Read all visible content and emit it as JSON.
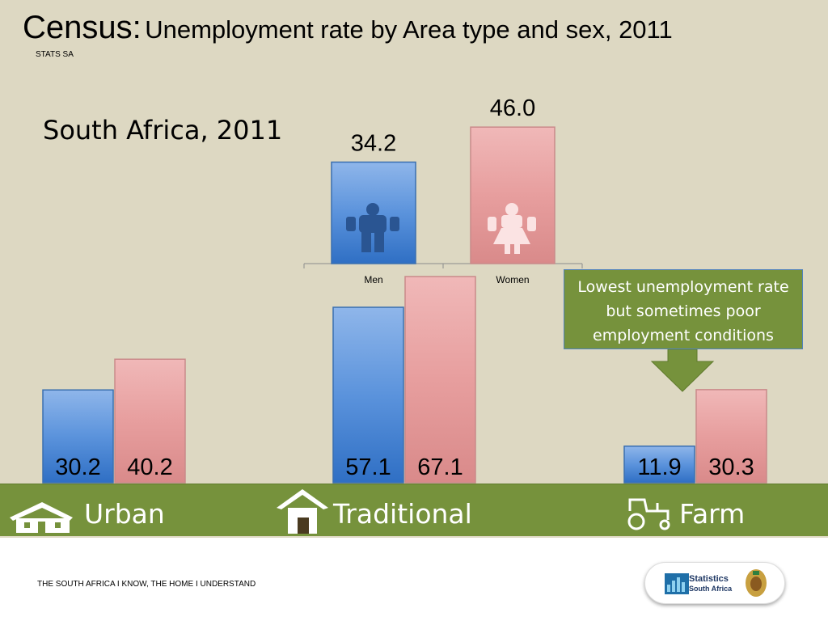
{
  "title": {
    "prefix": "Census:",
    "main": "Unemployment rate by Area type and sex, 2011"
  },
  "source_label": "STATS SA",
  "subtitle": "South Africa, 2011",
  "callout": "Lowest unemployment rate but sometimes poor employment conditions",
  "footer": "THE SOUTH AFRICA I KNOW, THE HOME I UNDERSTAND",
  "logo": {
    "line1": "Statistics",
    "line2": "South Africa"
  },
  "colors": {
    "men": "#558ed5",
    "women": "#e6a0a0",
    "band": "#76923c",
    "background": "#ddd8c2"
  },
  "icons": {
    "urban": "house-icon",
    "traditional": "hut-icon",
    "farm": "tractor-icon",
    "men": "man-icon",
    "women": "woman-icon"
  },
  "chart_data": [
    {
      "type": "bar",
      "categories": [
        "Men",
        "Women"
      ],
      "values": [
        34.2,
        46.0
      ],
      "data_labels": [
        "34.2",
        "46.0"
      ]
    },
    {
      "type": "bar",
      "categories": [
        "Urban",
        "Traditional",
        "Farm"
      ],
      "series": [
        {
          "values": [
            30.2,
            57.1,
            11.9
          ],
          "labels": [
            "30.2",
            "57.1",
            "11.9"
          ]
        },
        {
          "values": [
            40.2,
            67.1,
            30.3
          ],
          "labels": [
            "40.2",
            "67.1",
            "30.3"
          ]
        }
      ]
    }
  ]
}
